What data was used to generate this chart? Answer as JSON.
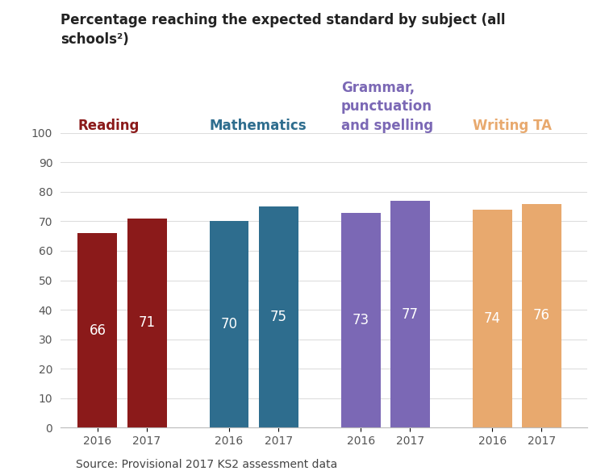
{
  "title": "Percentage reaching the expected standard by subject (all\nschools²)",
  "source": "Source: Provisional 2017 KS2 assessment data",
  "background_color": "#ffffff",
  "ylim": [
    0,
    100
  ],
  "yticks": [
    0,
    10,
    20,
    30,
    40,
    50,
    60,
    70,
    80,
    90,
    100
  ],
  "groups": [
    {
      "label": "Reading",
      "label_color": "#8b1a1a",
      "years": [
        "2016",
        "2017"
      ],
      "values": [
        66,
        71
      ],
      "bar_color": "#8b1a1a",
      "x_positions": [
        0.55,
        1.15
      ]
    },
    {
      "label": "Mathematics",
      "label_color": "#2e6d8e",
      "years": [
        "2016",
        "2017"
      ],
      "values": [
        70,
        75
      ],
      "bar_color": "#2e6d8e",
      "x_positions": [
        2.15,
        2.75
      ]
    },
    {
      "label": "Grammar,\npunctuation\nand spelling",
      "label_color": "#7b68b5",
      "years": [
        "2016",
        "2017"
      ],
      "values": [
        73,
        77
      ],
      "bar_color": "#7b68b5",
      "x_positions": [
        3.75,
        4.35
      ]
    },
    {
      "label": "Writing TA",
      "label_color": "#e8a96e",
      "years": [
        "2016",
        "2017"
      ],
      "values": [
        74,
        76
      ],
      "bar_color": "#e8a96e",
      "x_positions": [
        5.35,
        5.95
      ]
    }
  ],
  "bar_width": 0.48,
  "value_label_color": "#ffffff",
  "value_label_fontsize": 12,
  "label_fontsize": 12,
  "title_fontsize": 12,
  "tick_fontsize": 10,
  "source_fontsize": 10
}
